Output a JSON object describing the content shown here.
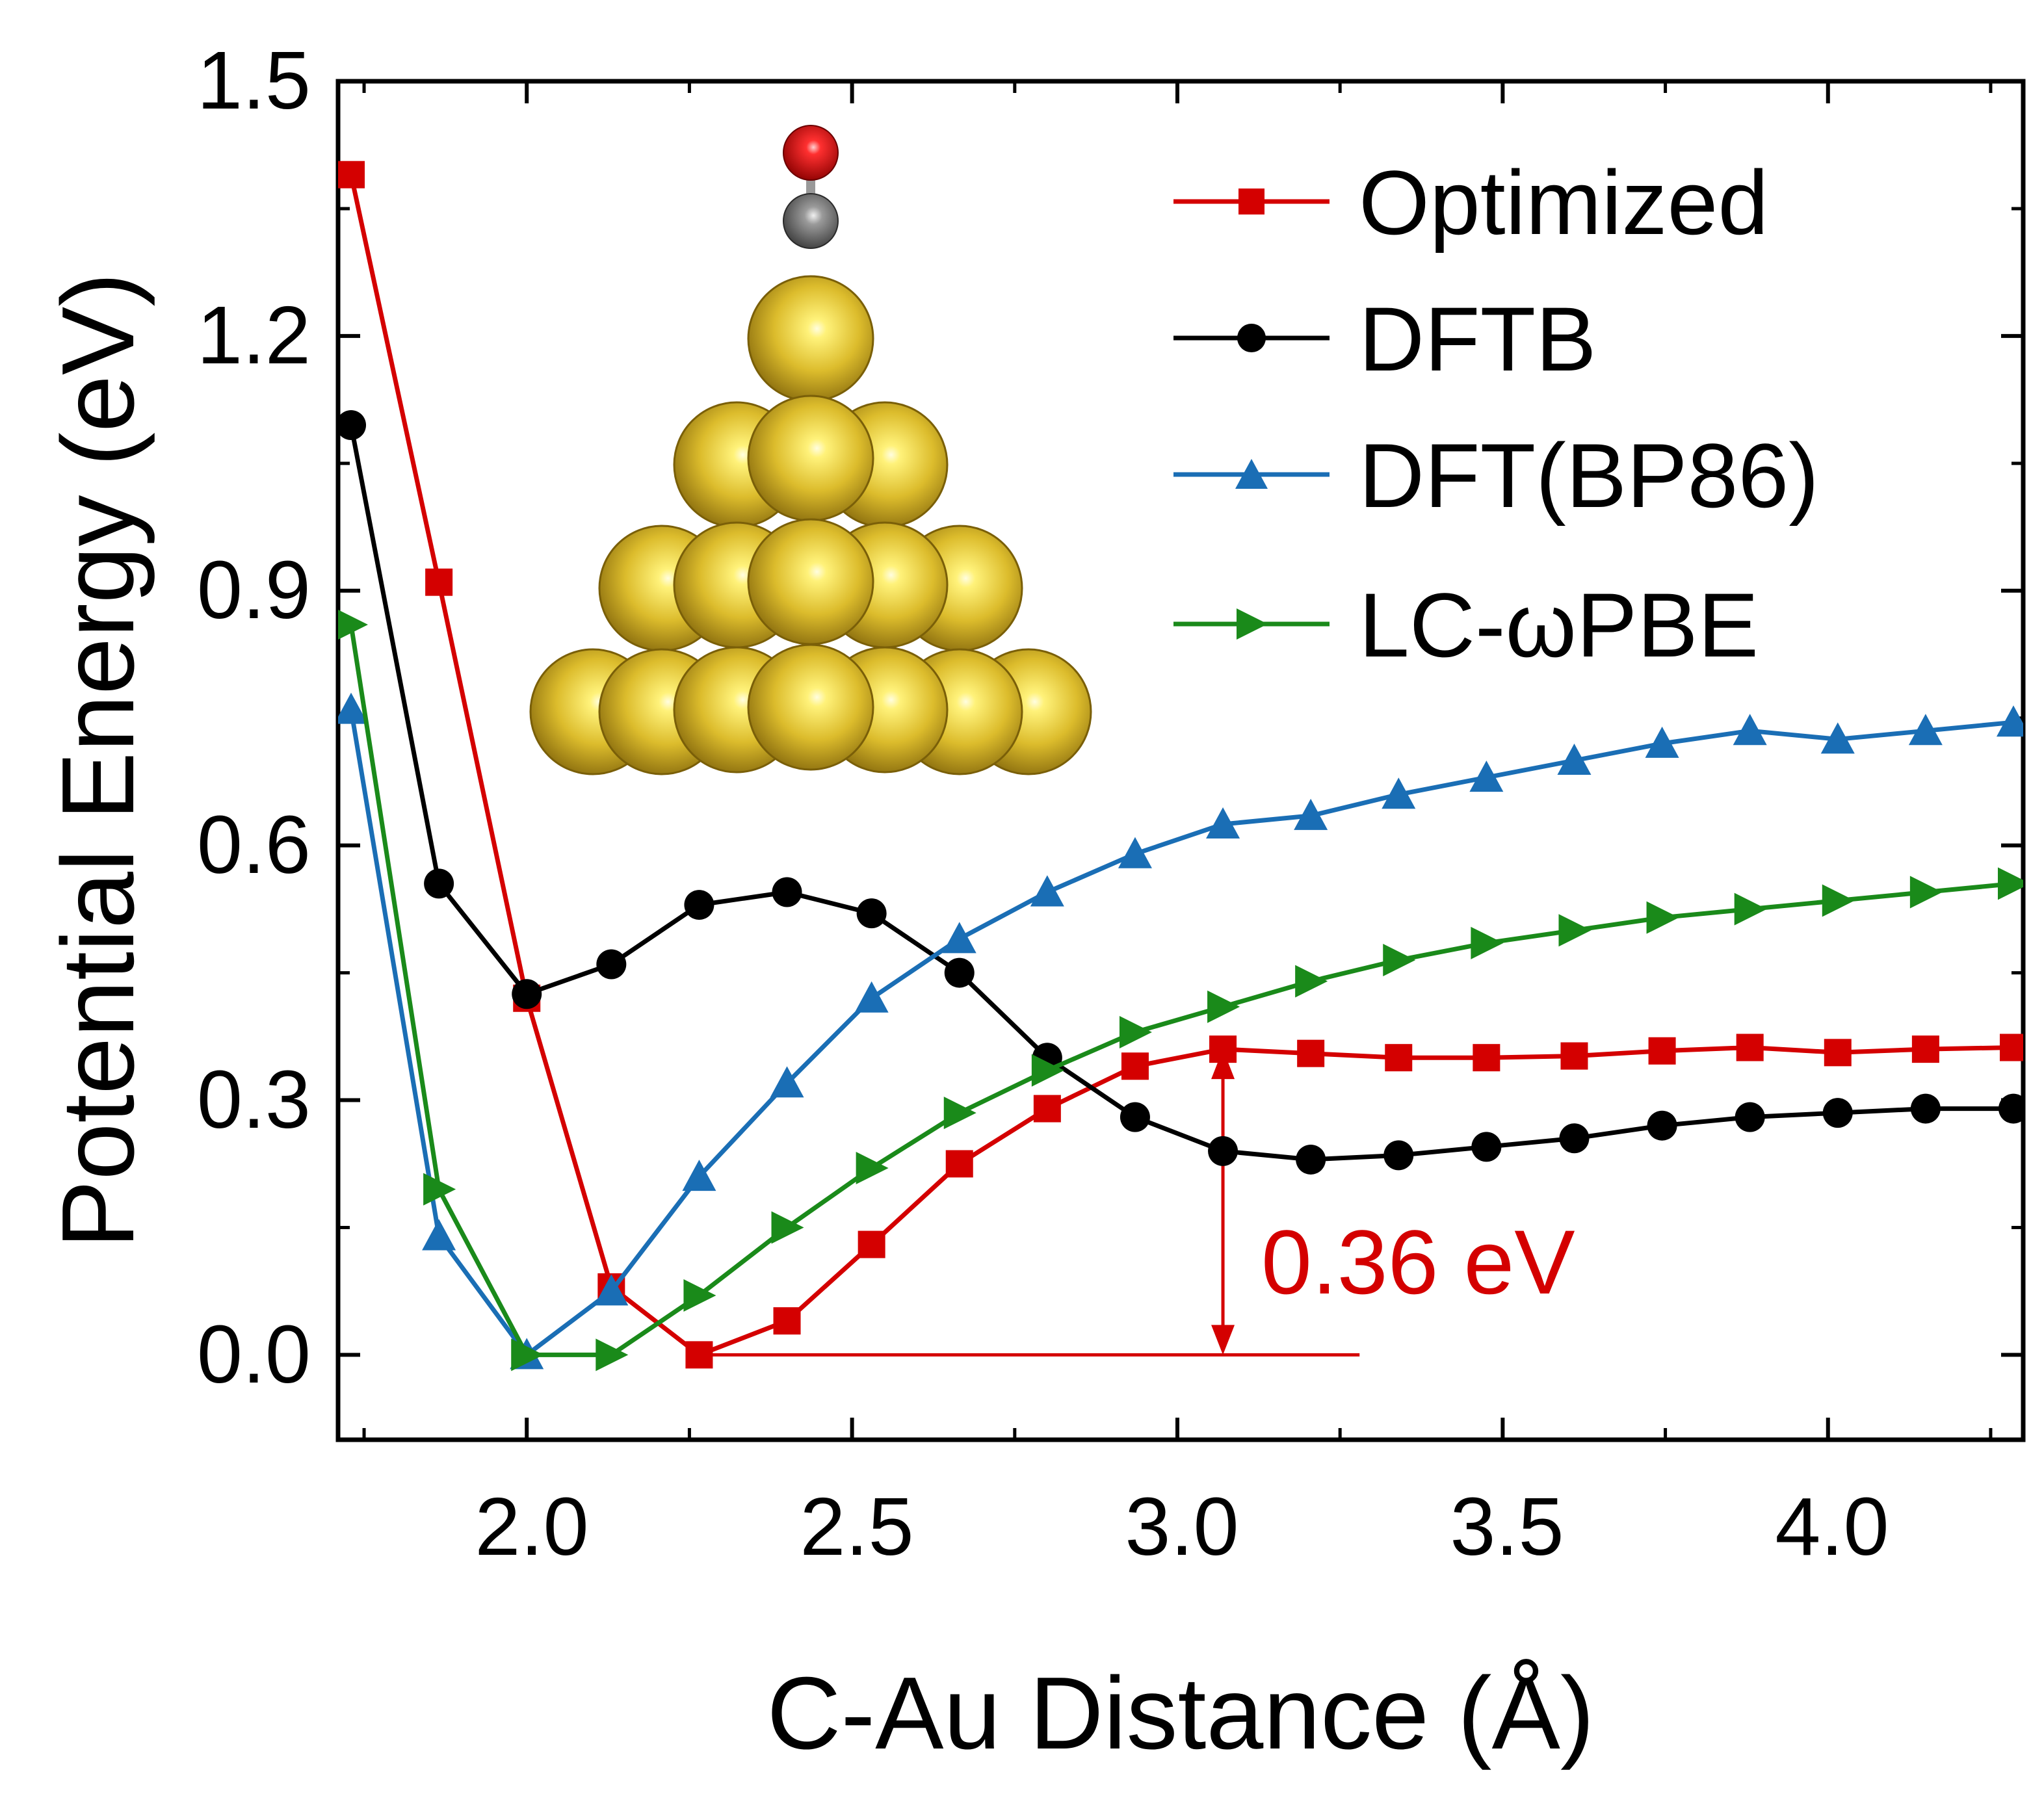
{
  "chart_data": {
    "type": "line",
    "title": "",
    "xlabel": "C-Au Distance (Å)",
    "ylabel": "Potential Energy (eV)",
    "xlim": [
      1.71,
      4.3
    ],
    "ylim": [
      -0.1,
      1.5
    ],
    "x_ticks": [
      "2.0",
      "2.5",
      "3.0",
      "3.5",
      "4.0"
    ],
    "x_tick_values": [
      2.0,
      2.5,
      3.0,
      3.5,
      4.0
    ],
    "y_ticks": [
      "0.0",
      "0.3",
      "0.6",
      "0.9",
      "1.2",
      "1.5"
    ],
    "y_tick_values": [
      0.0,
      0.3,
      0.6,
      0.9,
      1.2,
      1.5
    ],
    "legend_position": "top-right",
    "x": [
      1.73,
      1.865,
      2.0,
      2.13,
      2.265,
      2.4,
      2.53,
      2.665,
      2.8,
      2.935,
      3.07,
      3.205,
      3.34,
      3.475,
      3.61,
      3.745,
      3.88,
      4.015,
      4.15,
      4.285
    ],
    "series": [
      {
        "name": "Optimized",
        "color": "#d40000",
        "marker": "square",
        "values": [
          1.39,
          0.91,
          0.42,
          0.08,
          0.0,
          0.04,
          0.13,
          0.225,
          0.29,
          0.34,
          0.36,
          0.355,
          0.35,
          0.35,
          0.352,
          0.358,
          0.362,
          0.356,
          0.36,
          0.362
        ]
      },
      {
        "name": "DFTB",
        "color": "#000000",
        "marker": "circle",
        "values": [
          1.095,
          0.555,
          0.425,
          0.46,
          0.53,
          0.545,
          0.52,
          0.45,
          0.35,
          0.28,
          0.24,
          0.23,
          0.235,
          0.245,
          0.255,
          0.27,
          0.28,
          0.285,
          0.29,
          0.29
        ]
      },
      {
        "name": "DFT(BP86)",
        "color": "#1a6eb5",
        "marker": "triangle-up",
        "values": [
          0.76,
          0.14,
          0.0,
          0.075,
          0.21,
          0.32,
          0.42,
          0.49,
          0.545,
          0.59,
          0.625,
          0.635,
          0.66,
          0.68,
          0.7,
          0.72,
          0.735,
          0.725,
          0.735,
          0.745
        ]
      },
      {
        "name": "LC-ωPBE",
        "color": "#1a8a1a",
        "marker": "triangle-right",
        "values": [
          0.86,
          0.195,
          0.0,
          0.0,
          0.07,
          0.15,
          0.22,
          0.285,
          0.335,
          0.38,
          0.41,
          0.44,
          0.465,
          0.485,
          0.5,
          0.515,
          0.525,
          0.535,
          0.545,
          0.555
        ]
      }
    ],
    "annotation": {
      "text": "0.36 eV",
      "color": "#d40000",
      "x": 3.07,
      "y_from": 0.0,
      "y_to": 0.36,
      "baseline_x_from": 2.265,
      "baseline_x_to": 3.28
    },
    "inset": "CO molecule adsorbed on top of a pyramidal gold cluster"
  }
}
